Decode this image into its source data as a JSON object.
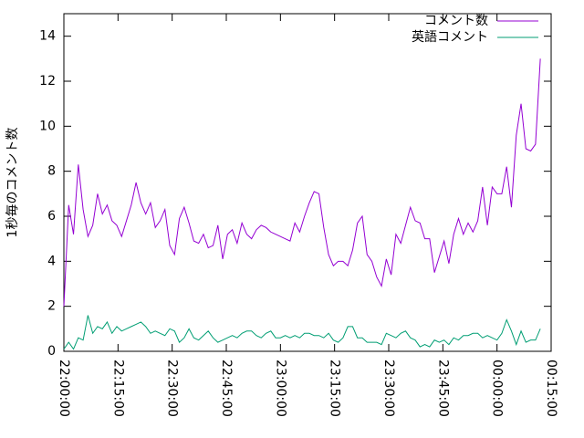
{
  "chart_data": {
    "type": "line",
    "ylabel": "1秒毎のコメント数",
    "x": [
      0,
      80,
      160,
      240,
      320,
      400,
      480,
      560,
      640,
      720,
      800,
      880,
      960,
      1040,
      1120,
      1200,
      1280,
      1360,
      1440,
      1520,
      1600,
      1680,
      1760,
      1840,
      1920,
      2000,
      2080,
      2160,
      2240,
      2320,
      2400,
      2480,
      2560,
      2640,
      2720,
      2800,
      2880,
      2960,
      3040,
      3120,
      3200,
      3280,
      3360,
      3440,
      3520,
      3600,
      3680,
      3760,
      3840,
      3920,
      4000,
      4080,
      4160,
      4240,
      4320,
      4400,
      4480,
      4560,
      4640,
      4720,
      4800,
      4880,
      4960,
      5040,
      5120,
      5200,
      5280,
      5360,
      5440,
      5520,
      5600,
      5680,
      5760,
      5840,
      5920,
      6000,
      6080,
      6160,
      6240,
      6320,
      6400,
      6480,
      6560,
      6640,
      6720,
      6800,
      6880,
      6960,
      7040,
      7120,
      7200,
      7280,
      7360,
      7440,
      7520,
      7600,
      7680,
      7760,
      7840,
      7920
    ],
    "series": [
      {
        "name": "コメント数",
        "color": "#9400d3",
        "values": [
          2.0,
          6.5,
          5.2,
          8.3,
          6.3,
          5.1,
          5.6,
          7.0,
          6.1,
          6.5,
          5.8,
          5.6,
          5.1,
          5.8,
          6.5,
          7.5,
          6.6,
          6.1,
          6.6,
          5.5,
          5.8,
          6.3,
          4.7,
          4.3,
          5.9,
          6.4,
          5.7,
          4.9,
          4.8,
          5.2,
          4.6,
          4.7,
          5.6,
          4.1,
          5.2,
          5.4,
          4.8,
          5.7,
          5.2,
          5.0,
          5.4,
          5.6,
          5.5,
          5.3,
          5.2,
          5.1,
          5.0,
          4.9,
          5.7,
          5.3,
          6.0,
          6.6,
          7.1,
          7.0,
          5.5,
          4.3,
          3.8,
          4.0,
          4.0,
          3.8,
          4.5,
          5.7,
          6.0,
          4.3,
          4.0,
          3.3,
          2.9,
          4.1,
          3.4,
          5.2,
          4.8,
          5.6,
          6.4,
          5.8,
          5.7,
          5.0,
          5.0,
          3.5,
          4.2,
          4.9,
          3.9,
          5.2,
          5.9,
          5.2,
          5.7,
          5.3,
          5.8,
          7.3,
          5.6,
          7.3,
          7.0,
          7.0,
          8.2,
          6.4,
          9.6,
          11.0,
          9.0,
          8.9,
          9.2,
          13.0
        ]
      },
      {
        "name": "英語コメント",
        "color": "#009e73",
        "values": [
          0.1,
          0.4,
          0.1,
          0.6,
          0.5,
          1.6,
          0.8,
          1.1,
          1.0,
          1.3,
          0.8,
          1.1,
          0.9,
          1.0,
          1.1,
          1.2,
          1.3,
          1.1,
          0.8,
          0.9,
          0.8,
          0.7,
          1.0,
          0.9,
          0.4,
          0.6,
          1.0,
          0.6,
          0.5,
          0.7,
          0.9,
          0.6,
          0.4,
          0.5,
          0.6,
          0.7,
          0.6,
          0.8,
          0.9,
          0.9,
          0.7,
          0.6,
          0.8,
          0.9,
          0.6,
          0.6,
          0.7,
          0.6,
          0.7,
          0.6,
          0.8,
          0.8,
          0.7,
          0.7,
          0.6,
          0.8,
          0.5,
          0.4,
          0.6,
          1.1,
          1.1,
          0.6,
          0.6,
          0.4,
          0.4,
          0.4,
          0.3,
          0.8,
          0.7,
          0.6,
          0.8,
          0.9,
          0.6,
          0.5,
          0.2,
          0.3,
          0.2,
          0.5,
          0.4,
          0.5,
          0.3,
          0.6,
          0.5,
          0.7,
          0.7,
          0.8,
          0.8,
          0.6,
          0.7,
          0.6,
          0.5,
          0.8,
          1.4,
          0.9,
          0.3,
          0.9,
          0.4,
          0.5,
          0.5,
          1.0
        ]
      }
    ],
    "xlim": [
      0,
      8100
    ],
    "xticks": [
      {
        "value": 0,
        "label": "22:00:00"
      },
      {
        "value": 900,
        "label": "22:15:00"
      },
      {
        "value": 1800,
        "label": "22:30:00"
      },
      {
        "value": 2700,
        "label": "22:45:00"
      },
      {
        "value": 3600,
        "label": "23:00:00"
      },
      {
        "value": 4500,
        "label": "23:15:00"
      },
      {
        "value": 5400,
        "label": "23:30:00"
      },
      {
        "value": 6300,
        "label": "23:45:00"
      },
      {
        "value": 7200,
        "label": "00:00:00"
      },
      {
        "value": 8100,
        "label": "00:15:00"
      }
    ],
    "ylim": [
      0,
      15
    ],
    "yticks": [
      0,
      2,
      4,
      6,
      8,
      10,
      12,
      14
    ],
    "legend": "top right"
  }
}
